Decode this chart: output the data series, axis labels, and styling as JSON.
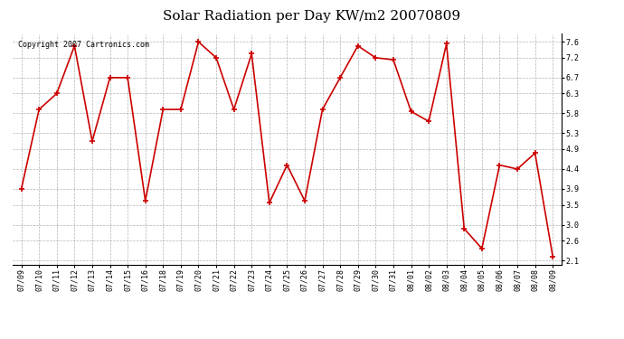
{
  "title": "Solar Radiation per Day KW/m2 20070809",
  "copyright_text": "Copyright 2007 Cartronics.com",
  "dates": [
    "07/09",
    "07/10",
    "07/11",
    "07/12",
    "07/13",
    "07/14",
    "07/15",
    "07/16",
    "07/18",
    "07/19",
    "07/20",
    "07/21",
    "07/22",
    "07/23",
    "07/24",
    "07/25",
    "07/26",
    "07/27",
    "07/28",
    "07/29",
    "07/30",
    "07/31",
    "08/01",
    "08/02",
    "08/03",
    "08/04",
    "08/05",
    "08/06",
    "08/07",
    "08/08",
    "08/09"
  ],
  "values": [
    3.9,
    5.9,
    6.3,
    7.5,
    5.1,
    6.7,
    6.7,
    3.6,
    5.9,
    5.9,
    7.6,
    7.2,
    5.9,
    7.3,
    3.55,
    4.5,
    3.6,
    5.9,
    6.7,
    7.5,
    7.2,
    7.15,
    5.85,
    5.6,
    7.55,
    2.9,
    2.4,
    4.5,
    4.4,
    4.8,
    2.2
  ],
  "line_color": "#cc0000",
  "marker_color": "#cc0000",
  "bg_color": "#ffffff",
  "plot_bg_color": "#ffffff",
  "grid_color": "#aaaaaa",
  "ylim": [
    2.0,
    7.8
  ],
  "yticks": [
    2.1,
    2.6,
    3.0,
    3.5,
    3.9,
    4.4,
    4.9,
    5.3,
    5.8,
    6.3,
    6.7,
    7.2,
    7.6
  ],
  "title_fontsize": 11,
  "tick_fontsize": 6,
  "copyright_fontsize": 6
}
